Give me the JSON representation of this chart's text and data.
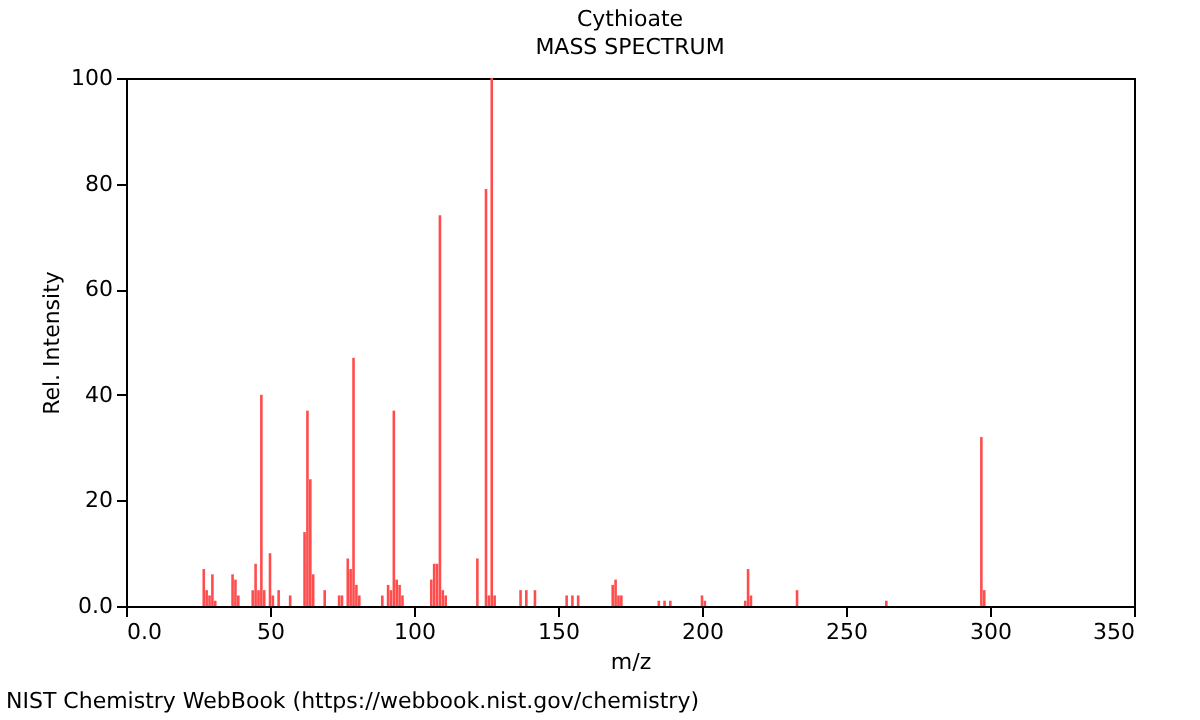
{
  "chart_data": {
    "type": "bar",
    "title": "Cythioate",
    "subtitle": "MASS SPECTRUM",
    "xlabel": "m/z",
    "ylabel": "Rel. Intensity",
    "x": [
      27,
      28,
      29,
      30,
      31,
      37,
      38,
      39,
      44,
      45,
      46,
      47,
      48,
      50,
      51,
      53,
      57,
      62,
      63,
      64,
      65,
      69,
      74,
      75,
      77,
      78,
      79,
      80,
      81,
      89,
      91,
      92,
      93,
      94,
      95,
      96,
      106,
      107,
      108,
      109,
      110,
      111,
      122,
      125,
      126,
      127,
      128,
      137,
      139,
      142,
      153,
      155,
      157,
      169,
      170,
      171,
      172,
      185,
      187,
      189,
      200,
      201,
      215,
      216,
      217,
      233,
      264,
      297,
      298
    ],
    "values": [
      7,
      3,
      2,
      6,
      1,
      6,
      5,
      2,
      3,
      8,
      3,
      40,
      3,
      10,
      2,
      3,
      2,
      14,
      37,
      24,
      6,
      3,
      2,
      2,
      9,
      7,
      47,
      4,
      2,
      2,
      4,
      3,
      37,
      5,
      4,
      2,
      5,
      8,
      8,
      74,
      3,
      2,
      9,
      79,
      2,
      100,
      2,
      3,
      3,
      3,
      2,
      2,
      2,
      4,
      5,
      2,
      2,
      1,
      1,
      1,
      2,
      1,
      1,
      7,
      2,
      3,
      1,
      32,
      3
    ],
    "color": "#ff4d4d",
    "xlim": [
      0,
      350
    ],
    "xticks": [
      {
        "value": 0,
        "label": "0.0"
      },
      {
        "value": 50,
        "label": "50"
      },
      {
        "value": 100,
        "label": "100"
      },
      {
        "value": 150,
        "label": "150"
      },
      {
        "value": 200,
        "label": "200"
      },
      {
        "value": 250,
        "label": "250"
      },
      {
        "value": 300,
        "label": "300"
      },
      {
        "value": 350,
        "label": "350"
      }
    ],
    "ylim": [
      0,
      100
    ],
    "yticks": [
      {
        "value": 0,
        "label": "0.0"
      },
      20,
      40,
      60,
      80,
      100
    ],
    "annotations": [
      "NIST Chemistry WebBook (https://webbook.nist.gov/chemistry)"
    ]
  }
}
